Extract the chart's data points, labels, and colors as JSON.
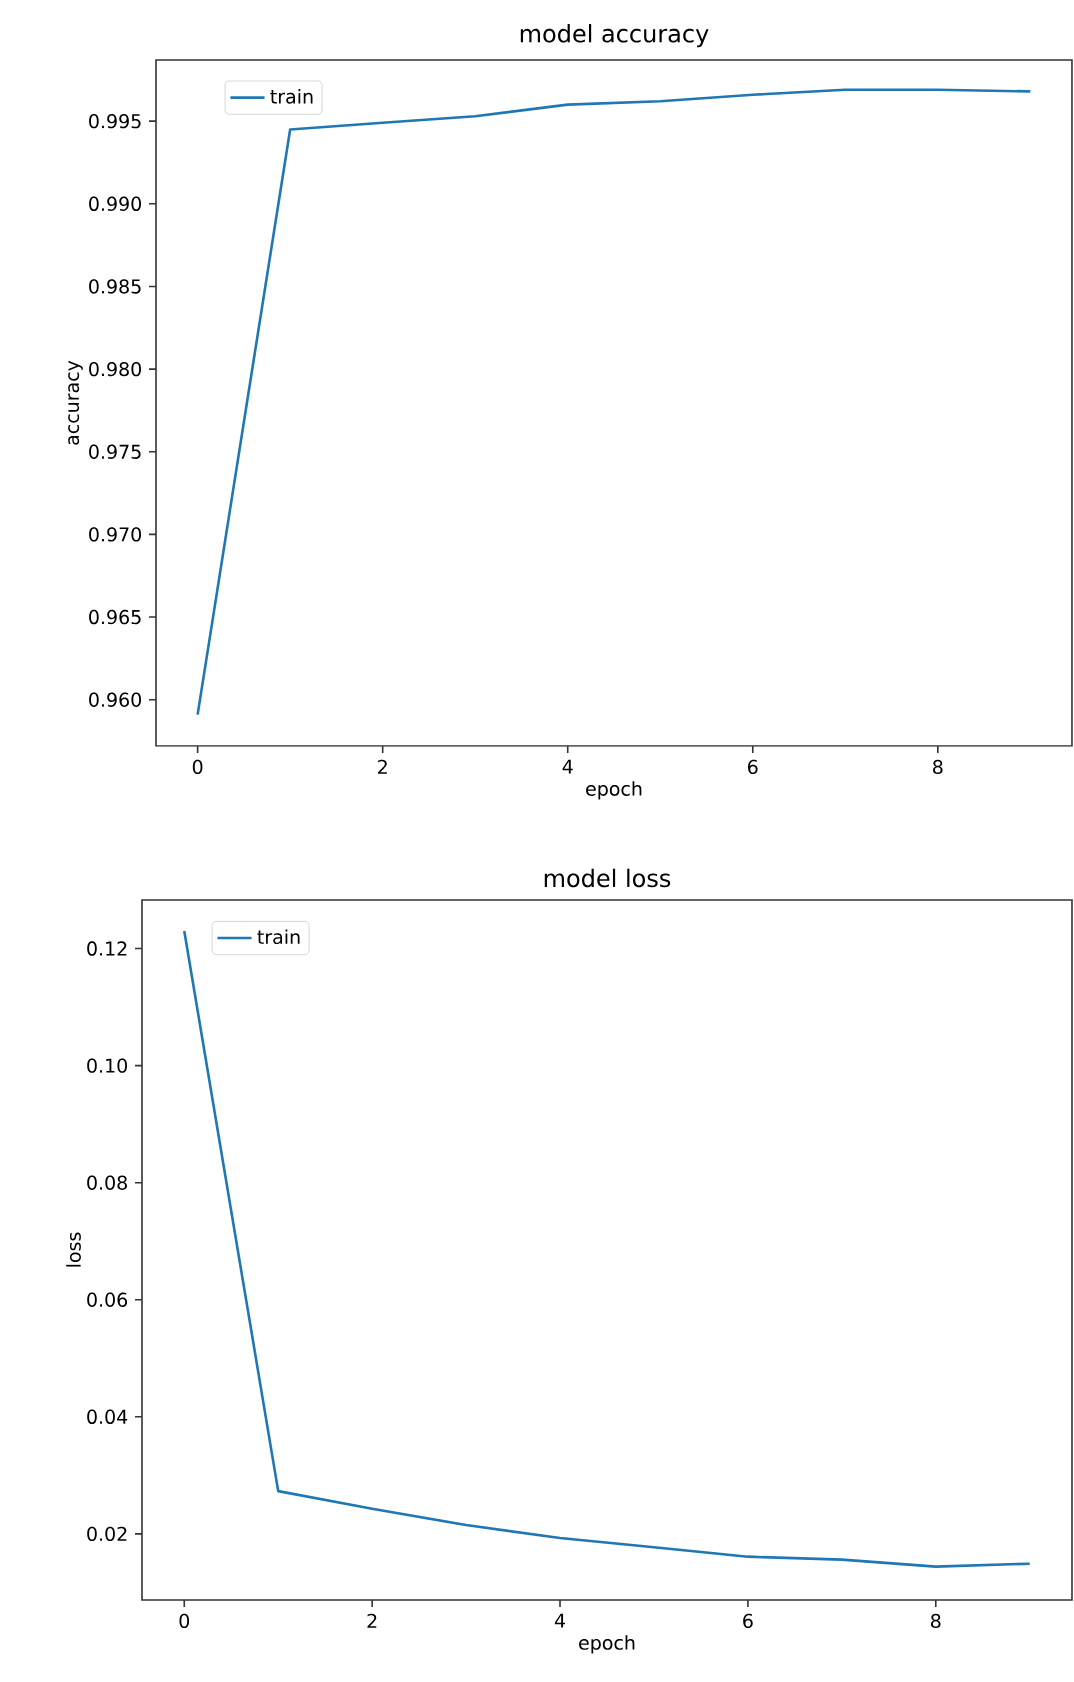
{
  "chart_data": [
    {
      "type": "line",
      "title": "model accuracy",
      "xlabel": "epoch",
      "ylabel": "accuracy",
      "x": [
        0,
        1,
        2,
        3,
        4,
        5,
        6,
        7,
        8,
        9
      ],
      "series": [
        {
          "name": "train",
          "color": "#1f77b4",
          "values": [
            0.9591,
            0.9945,
            0.9949,
            0.9953,
            0.996,
            0.9962,
            0.9966,
            0.9969,
            0.9969,
            0.9968
          ]
        }
      ],
      "xlim": [
        -0.45,
        9.45
      ],
      "ylim": [
        0.9572,
        0.9987
      ],
      "xticks": [
        0,
        2,
        4,
        6,
        8
      ],
      "yticks": [
        {
          "value": 0.96,
          "label": "0.960"
        },
        {
          "value": 0.965,
          "label": "0.965"
        },
        {
          "value": 0.97,
          "label": "0.970"
        },
        {
          "value": 0.975,
          "label": "0.975"
        },
        {
          "value": 0.98,
          "label": "0.980"
        },
        {
          "value": 0.985,
          "label": "0.985"
        },
        {
          "value": 0.99,
          "label": "0.990"
        },
        {
          "value": 0.995,
          "label": "0.995"
        }
      ],
      "legend": "top left"
    },
    {
      "type": "line",
      "title": "model loss",
      "xlabel": "epoch",
      "ylabel": "loss",
      "x": [
        0,
        1,
        2,
        3,
        4,
        5,
        6,
        7,
        8,
        9
      ],
      "series": [
        {
          "name": "train",
          "color": "#1f77b4",
          "values": [
            0.123,
            0.0273,
            0.0243,
            0.0215,
            0.0193,
            0.0177,
            0.0161,
            0.0156,
            0.0144,
            0.0149
          ]
        }
      ],
      "xlim": [
        -0.45,
        9.45
      ],
      "ylim": [
        0.0087,
        0.1283
      ],
      "xticks": [
        0,
        2,
        4,
        6,
        8
      ],
      "yticks": [
        {
          "value": 0.02,
          "label": "0.02"
        },
        {
          "value": 0.04,
          "label": "0.04"
        },
        {
          "value": 0.06,
          "label": "0.06"
        },
        {
          "value": 0.08,
          "label": "0.08"
        },
        {
          "value": 0.1,
          "label": "0.10"
        },
        {
          "value": 0.12,
          "label": "0.12"
        }
      ],
      "legend": "top left"
    }
  ]
}
